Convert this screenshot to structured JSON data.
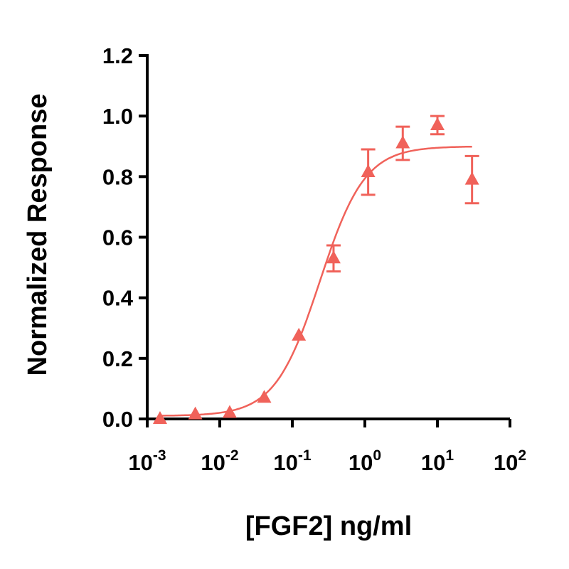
{
  "chart_data": {
    "type": "scatter",
    "title": "",
    "xlabel": "[FGF2] ng/ml",
    "ylabel": "Normalized Response",
    "x_scale": "log",
    "xlim": [
      0.001,
      100
    ],
    "ylim": [
      0,
      1.2
    ],
    "x_ticks": [
      {
        "base": "10",
        "exp": "-3"
      },
      {
        "base": "10",
        "exp": "-2"
      },
      {
        "base": "10",
        "exp": "-1"
      },
      {
        "base": "10",
        "exp": "0"
      },
      {
        "base": "10",
        "exp": "1"
      },
      {
        "base": "10",
        "exp": "2"
      }
    ],
    "y_ticks": [
      "0.0",
      "0.2",
      "0.4",
      "0.6",
      "0.8",
      "1.0",
      "1.2"
    ],
    "grid": false,
    "color": "#f0625a",
    "marker": "triangle",
    "series": [
      {
        "x": [
          0.0015,
          0.0046,
          0.0137,
          0.041,
          0.123,
          0.37,
          1.11,
          3.33,
          10,
          30
        ],
        "y": [
          0.0,
          0.015,
          0.02,
          0.07,
          0.275,
          0.53,
          0.815,
          0.91,
          0.97,
          0.79
        ],
        "error": [
          0,
          0,
          0,
          0,
          0,
          0.043,
          0.075,
          0.055,
          0.03,
          0.078
        ]
      }
    ],
    "fit": {
      "model": "four-parameter logistic",
      "bottom": 0.01,
      "top": 0.9,
      "ec50": 0.24,
      "hill": 1.4,
      "x_range": [
        0.0015,
        30
      ]
    }
  }
}
